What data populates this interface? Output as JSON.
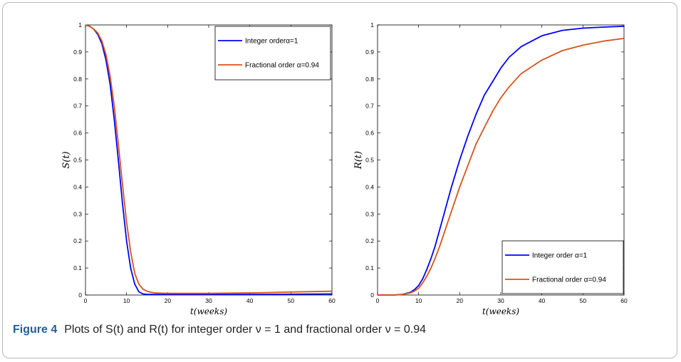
{
  "figure": {
    "label": "Figure 4",
    "caption": "Plots of S(t) and R(t) for integer order ν = 1 and fractional order ν = 0.94"
  },
  "chart_data": [
    {
      "type": "line",
      "ylabel": "S(t)",
      "xlabel": "t(weeks)",
      "xlim": [
        0,
        60
      ],
      "ylim": [
        0,
        1
      ],
      "xticks": [
        "0",
        "10",
        "20",
        "30",
        "40",
        "50",
        "60"
      ],
      "yticks": [
        "0",
        "0.1",
        "0.2",
        "0.3",
        "0.4",
        "0.5",
        "0.6",
        "0.7",
        "0.8",
        "0.9",
        "1"
      ],
      "grid": false,
      "legend_position": "top-right",
      "series": [
        {
          "name": "Integer orderα=1",
          "color": "#0000ff",
          "x": [
            0,
            1,
            2,
            3,
            4,
            5,
            6,
            7,
            8,
            9,
            10,
            11,
            12,
            13,
            14,
            15,
            16,
            18,
            20,
            25,
            30,
            40,
            50,
            60
          ],
          "y": [
            1.0,
            0.995,
            0.985,
            0.965,
            0.93,
            0.87,
            0.78,
            0.65,
            0.5,
            0.34,
            0.2,
            0.1,
            0.04,
            0.012,
            0.004,
            0.002,
            0.002,
            0.002,
            0.002,
            0.002,
            0.002,
            0.002,
            0.003,
            0.004
          ]
        },
        {
          "name": "Fractional order α=0.94",
          "color": "#d95319",
          "x": [
            0,
            1,
            2,
            3,
            4,
            5,
            6,
            7,
            8,
            9,
            10,
            11,
            12,
            13,
            14,
            15,
            16,
            17,
            18,
            20,
            25,
            30,
            40,
            50,
            60
          ],
          "y": [
            1.0,
            0.995,
            0.985,
            0.97,
            0.94,
            0.89,
            0.81,
            0.7,
            0.56,
            0.41,
            0.27,
            0.16,
            0.08,
            0.04,
            0.022,
            0.014,
            0.01,
            0.008,
            0.007,
            0.006,
            0.006,
            0.006,
            0.008,
            0.011,
            0.014
          ]
        }
      ]
    },
    {
      "type": "line",
      "ylabel": "R(t)",
      "xlabel": "t(weeks)",
      "xlim": [
        0,
        60
      ],
      "ylim": [
        0,
        1
      ],
      "xticks": [
        "0",
        "10",
        "20",
        "30",
        "40",
        "50",
        "60"
      ],
      "yticks": [
        "0",
        "0.1",
        "0.2",
        "0.3",
        "0.4",
        "0.5",
        "0.6",
        "0.7",
        "0.8",
        "0.9",
        "1"
      ],
      "grid": false,
      "legend_position": "bottom-right",
      "series": [
        {
          "name": "Integer order α=1",
          "color": "#0000ff",
          "x": [
            0,
            4,
            6,
            8,
            9,
            10,
            11,
            12,
            13,
            14,
            15,
            16,
            17,
            18,
            20,
            22,
            24,
            26,
            28,
            30,
            32,
            35,
            40,
            45,
            50,
            55,
            60
          ],
          "y": [
            0,
            0,
            0.002,
            0.01,
            0.02,
            0.035,
            0.06,
            0.095,
            0.135,
            0.18,
            0.235,
            0.29,
            0.345,
            0.4,
            0.5,
            0.59,
            0.67,
            0.74,
            0.79,
            0.84,
            0.88,
            0.92,
            0.96,
            0.98,
            0.988,
            0.992,
            0.995
          ]
        },
        {
          "name": "Fractional order α=0.94",
          "color": "#d95319",
          "x": [
            0,
            4,
            6,
            8,
            9,
            10,
            11,
            12,
            13,
            14,
            15,
            16,
            17,
            18,
            20,
            22,
            24,
            26,
            28,
            30,
            32,
            35,
            40,
            45,
            50,
            55,
            60
          ],
          "y": [
            0,
            0,
            0.002,
            0.008,
            0.015,
            0.025,
            0.045,
            0.07,
            0.1,
            0.135,
            0.175,
            0.22,
            0.265,
            0.31,
            0.4,
            0.48,
            0.56,
            0.62,
            0.68,
            0.73,
            0.77,
            0.82,
            0.87,
            0.905,
            0.925,
            0.94,
            0.95
          ]
        }
      ]
    }
  ]
}
